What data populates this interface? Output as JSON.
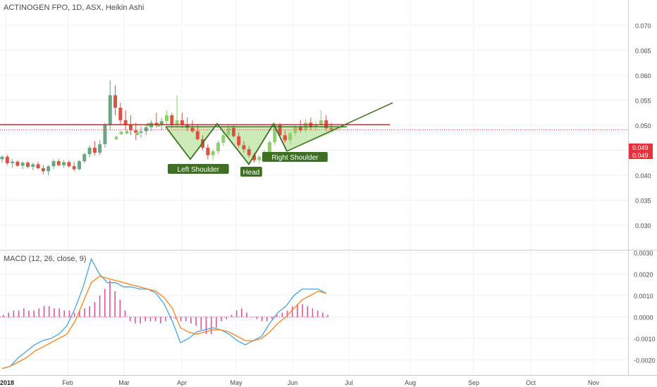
{
  "chart_data": [
    {
      "type": "candlestick",
      "title": "ACTINOGEN FPO, 1D, ASX, Heikin Ashi",
      "y_ticks": [
        "0.070",
        "0.065",
        "0.060",
        "0.055",
        "0.050",
        "0.045",
        "0.040",
        "0.035",
        "0.030"
      ],
      "ylim": [
        0.026,
        0.073
      ],
      "price_labels": [
        "0.049",
        "0.049"
      ],
      "resistance_level": 0.0501,
      "x_labels": [
        "2018",
        "Feb",
        "Mar",
        "Apr",
        "May",
        "Jun",
        "Jul",
        "Aug",
        "Sep",
        "Oct",
        "Nov"
      ],
      "annotations": [
        "Left Shoulder",
        "Head",
        "Right Shoulder"
      ],
      "pattern": "inverse head and shoulders",
      "colors": {
        "up": "#6ba583",
        "down": "#d75442",
        "up_pattern": "#8fcf6f",
        "resistance": "#e02020",
        "pattern_fill": "#b8e29a",
        "label_bg": "#3f6f22",
        "price_label": "#e8333f"
      },
      "candles": [
        [
          0.0432,
          0.044,
          0.0425,
          0.0437
        ],
        [
          0.0437,
          0.0441,
          0.042,
          0.0424
        ],
        [
          0.0424,
          0.0432,
          0.0415,
          0.0427
        ],
        [
          0.0427,
          0.043,
          0.0417,
          0.0419
        ],
        [
          0.0419,
          0.0428,
          0.0412,
          0.0425
        ],
        [
          0.0425,
          0.0428,
          0.0414,
          0.0417
        ],
        [
          0.0417,
          0.0425,
          0.041,
          0.0422
        ],
        [
          0.0422,
          0.0427,
          0.0412,
          0.0414
        ],
        [
          0.0414,
          0.042,
          0.0402,
          0.0408
        ],
        [
          0.0408,
          0.042,
          0.04,
          0.0418
        ],
        [
          0.0418,
          0.0432,
          0.0412,
          0.0428
        ],
        [
          0.0428,
          0.0432,
          0.0418,
          0.042
        ],
        [
          0.042,
          0.043,
          0.0415,
          0.0426
        ],
        [
          0.0426,
          0.043,
          0.0415,
          0.0418
        ],
        [
          0.0418,
          0.0426,
          0.0408,
          0.0412
        ],
        [
          0.0412,
          0.043,
          0.041,
          0.0428
        ],
        [
          0.0428,
          0.0445,
          0.0424,
          0.0442
        ],
        [
          0.0442,
          0.046,
          0.0436,
          0.0455
        ],
        [
          0.0455,
          0.0468,
          0.044,
          0.0445
        ],
        [
          0.0445,
          0.047,
          0.044,
          0.0462
        ],
        [
          0.0462,
          0.0505,
          0.0455,
          0.05
        ],
        [
          0.05,
          0.059,
          0.049,
          0.056
        ],
        [
          0.056,
          0.058,
          0.052,
          0.0535
        ],
        [
          0.0535,
          0.0545,
          0.05,
          0.051
        ],
        [
          0.051,
          0.053,
          0.049,
          0.05
        ],
        [
          0.05,
          0.052,
          0.048,
          0.049
        ],
        [
          0.049,
          0.0505,
          0.047,
          0.0485
        ],
        [
          0.0485,
          0.0498,
          0.0475,
          0.0488
        ],
        [
          0.0488,
          0.0502,
          0.048,
          0.0496
        ],
        [
          0.0496,
          0.051,
          0.0488,
          0.0505
        ],
        [
          0.0505,
          0.0525,
          0.0495,
          0.05
        ],
        [
          0.05,
          0.0515,
          0.049,
          0.0508
        ],
        [
          0.0508,
          0.053,
          0.05,
          0.052
        ],
        [
          0.052,
          0.0525,
          0.0495,
          0.0502
        ],
        [
          0.0502,
          0.056,
          0.0495,
          0.051
        ],
        [
          0.051,
          0.0525,
          0.0495,
          0.05
        ],
        [
          0.05,
          0.0515,
          0.0488,
          0.0495
        ],
        [
          0.0495,
          0.051,
          0.0485,
          0.0488
        ],
        [
          0.0488,
          0.05,
          0.047,
          0.0472
        ],
        [
          0.0472,
          0.048,
          0.045,
          0.0455
        ],
        [
          0.0455,
          0.0462,
          0.0432,
          0.044
        ],
        [
          0.044,
          0.0452,
          0.043,
          0.0448
        ],
        [
          0.0448,
          0.047,
          0.0442,
          0.0465
        ],
        [
          0.0465,
          0.0485,
          0.0458,
          0.048
        ],
        [
          0.048,
          0.05,
          0.0472,
          0.0495
        ],
        [
          0.0495,
          0.0502,
          0.0475,
          0.0478
        ],
        [
          0.0478,
          0.0485,
          0.0455,
          0.046
        ],
        [
          0.046,
          0.0468,
          0.0445,
          0.0452
        ],
        [
          0.0452,
          0.0458,
          0.0435,
          0.044
        ],
        [
          0.044,
          0.0445,
          0.0425,
          0.043
        ],
        [
          0.043,
          0.044,
          0.0422,
          0.0437
        ],
        [
          0.0437,
          0.045,
          0.0432,
          0.0446
        ],
        [
          0.0446,
          0.047,
          0.044,
          0.0466
        ],
        [
          0.0466,
          0.0505,
          0.046,
          0.05
        ],
        [
          0.05,
          0.0505,
          0.0475,
          0.048
        ],
        [
          0.048,
          0.049,
          0.0465,
          0.047
        ],
        [
          0.047,
          0.0488,
          0.0462,
          0.0484
        ],
        [
          0.0484,
          0.05,
          0.0478,
          0.0496
        ],
        [
          0.0496,
          0.051,
          0.0485,
          0.049
        ],
        [
          0.049,
          0.0512,
          0.0485,
          0.0505
        ],
        [
          0.0505,
          0.0515,
          0.049,
          0.0498
        ],
        [
          0.0498,
          0.0508,
          0.0488,
          0.0502
        ],
        [
          0.0502,
          0.053,
          0.0495,
          0.051
        ],
        [
          0.051,
          0.052,
          0.0488,
          0.0494
        ],
        [
          0.0494,
          0.0505,
          0.0488,
          0.0492
        ]
      ]
    },
    {
      "type": "line",
      "title": "MACD (12, 26, close, 9)",
      "y_ticks": [
        "0.0030",
        "0.0020",
        "0.0010",
        "0.0000",
        "-0.0010",
        "-0.0020"
      ],
      "ylim": [
        -0.0025,
        0.0031
      ],
      "series": [
        {
          "color": "#4aa3df",
          "values": [
            -0.0024,
            -0.0023,
            -0.0019,
            -0.0016,
            -0.0013,
            -0.0011,
            -0.001,
            -0.0008,
            -0.0004,
            0.0004,
            0.0014,
            0.0027,
            0.002,
            0.0016,
            0.0016,
            0.0014,
            0.0014,
            0.0013,
            0.0013,
            0.0011,
            0.0006,
            -0.0002,
            -0.0012,
            -0.001,
            -0.0007,
            -0.0006,
            -0.0005,
            -0.0006,
            -0.0008,
            -0.0011,
            -0.0013,
            -0.0011,
            -0.0009,
            -0.0003,
            0.0002,
            0.0005,
            0.001,
            0.0013,
            0.0013,
            0.0013,
            0.0011
          ]
        },
        {
          "color": "#f5841f",
          "values": [
            -0.0024,
            -0.0023,
            -0.0021,
            -0.0019,
            -0.0016,
            -0.0014,
            -0.0012,
            -0.001,
            -0.0008,
            -0.0002,
            0.0007,
            0.0016,
            0.0019,
            0.0018,
            0.0017,
            0.0016,
            0.0015,
            0.0014,
            0.0013,
            0.0012,
            0.0009,
            0.0004,
            -0.0005,
            -0.0007,
            -0.0008,
            -0.0007,
            -0.0006,
            -0.0006,
            -0.0007,
            -0.0009,
            -0.0011,
            -0.0011,
            -0.001,
            -0.0007,
            -0.0003,
            0.0,
            0.0004,
            0.0008,
            0.001,
            0.0012,
            0.0011
          ]
        }
      ],
      "histogram": [
        0.0001,
        0.0002,
        0.0003,
        0.0003,
        0.0004,
        0.0003,
        0.0003,
        0.0004,
        0.0005,
        0.0005,
        0.0004,
        0.0004,
        0.0003,
        0.0003,
        0.0002,
        0.0003,
        0.0004,
        0.0005,
        0.0007,
        0.001,
        0.0013,
        0.0017,
        0.0012,
        0.0008,
        0.0003,
        -0.0002,
        -0.0003,
        -0.0003,
        -0.0002,
        -0.0002,
        -0.0002,
        -0.0003,
        -0.0002,
        -0.0001,
        -0.0001,
        -0.0002,
        -0.0002,
        -0.0003,
        -0.0004,
        -0.0006,
        -0.0008,
        -0.0008,
        -0.0005,
        -0.0002,
        -0.0001,
        0.0001,
        0.0003,
        0.0004,
        0.0002,
        0.0,
        -0.0001,
        -0.0002,
        -0.0002,
        -0.0001,
        0.0001,
        0.0002,
        0.0003,
        0.0005,
        0.0006,
        0.0006,
        0.0005,
        0.0004,
        0.0003,
        0.0002,
        0.0001
      ],
      "x_labels": [
        "2018",
        "Feb",
        "Mar",
        "Apr",
        "May",
        "Jun",
        "Jul",
        "Aug",
        "Sep",
        "Oct",
        "Nov"
      ]
    }
  ]
}
